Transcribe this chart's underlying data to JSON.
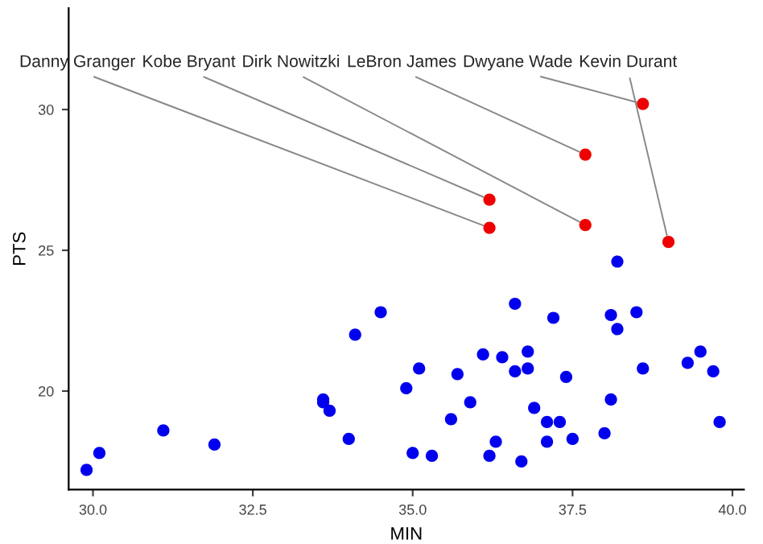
{
  "chart_data": {
    "type": "scatter",
    "xlabel": "MIN",
    "ylabel": "PTS",
    "xlim": [
      29.62,
      40.18
    ],
    "ylim": [
      16.5,
      33.6
    ],
    "xticks": [
      {
        "value": 30,
        "label": "30.0"
      },
      32.5,
      {
        "value": 35,
        "label": "35.0"
      },
      37.5,
      {
        "value": 40,
        "label": "40.0"
      }
    ],
    "yticks": [
      20,
      25,
      30
    ],
    "grid": false,
    "legend": false,
    "marker": "circle",
    "series": [
      {
        "color": "#0000ee",
        "x": [
          29.9,
          30.1,
          31.1,
          31.9,
          33.6,
          33.6,
          33.7,
          34.0,
          34.1,
          34.5,
          34.9,
          35.1,
          35.0,
          35.3,
          35.6,
          35.7,
          35.9,
          36.1,
          36.2,
          36.3,
          36.4,
          36.6,
          36.6,
          36.7,
          36.8,
          36.8,
          36.9,
          37.1,
          37.1,
          37.2,
          37.3,
          37.4,
          37.5,
          38.0,
          38.1,
          38.1,
          38.2,
          38.2,
          38.5,
          38.6,
          39.3,
          39.5,
          39.7,
          39.8
        ],
        "values": [
          17.2,
          17.8,
          18.6,
          18.1,
          19.7,
          19.6,
          19.3,
          18.3,
          22.0,
          22.8,
          20.1,
          20.8,
          17.8,
          17.7,
          19.0,
          20.6,
          19.6,
          21.3,
          17.7,
          18.2,
          21.2,
          23.1,
          20.7,
          17.5,
          21.4,
          20.8,
          19.4,
          18.9,
          18.2,
          22.6,
          18.9,
          20.5,
          18.3,
          18.5,
          19.7,
          22.7,
          22.2,
          24.6,
          22.8,
          20.8,
          21.0,
          21.4,
          20.7,
          18.9
        ]
      },
      {
        "color": "#ee0000",
        "x": [
          36.2,
          36.2,
          37.7,
          37.7,
          38.6,
          39.0
        ],
        "values": [
          25.8,
          26.8,
          25.9,
          28.4,
          30.2,
          25.3
        ]
      }
    ],
    "annotations": [
      {
        "text": "Danny Granger",
        "x": 36.2,
        "y": 25.8
      },
      {
        "text": "Kobe Bryant",
        "x": 36.2,
        "y": 26.8
      },
      {
        "text": "Dirk Nowitzki",
        "x": 37.7,
        "y": 25.9
      },
      {
        "text": "LeBron James",
        "x": 37.7,
        "y": 28.4
      },
      {
        "text": "Dwyane Wade",
        "x": 38.6,
        "y": 30.2
      },
      {
        "text": "Kevin Durant",
        "x": 39.0,
        "y": 25.3
      }
    ]
  }
}
